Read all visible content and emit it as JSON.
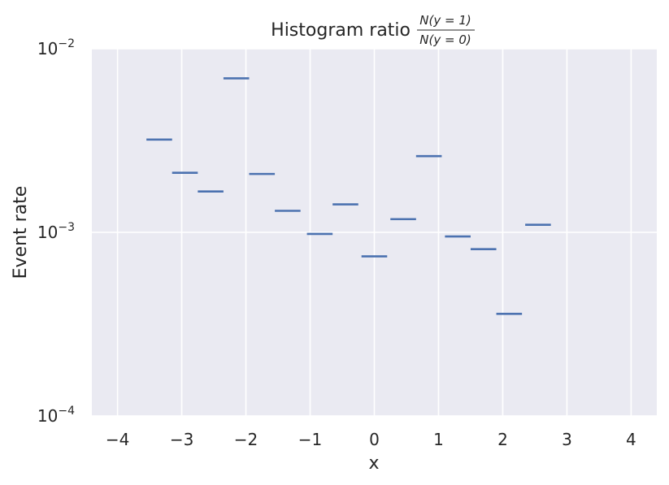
{
  "chart_data": {
    "type": "scatter",
    "title": "Histogram ratio",
    "title_fraction": {
      "numerator": "N(y = 1)",
      "denominator": "N(y = 0)"
    },
    "xlabel": "x",
    "ylabel": "Event rate",
    "xlim": [
      -4.4,
      4.4
    ],
    "ylim": [
      0.0001,
      0.01
    ],
    "yscale": "log",
    "grid": true,
    "x_ticks": [
      -4,
      -3,
      -2,
      -1,
      0,
      1,
      2,
      3,
      4
    ],
    "x_tick_labels": [
      "−4",
      "−3",
      "−2",
      "−1",
      "0",
      "1",
      "2",
      "3",
      "4"
    ],
    "y_ticks": [
      0.0001,
      0.001,
      0.01
    ],
    "y_tick_labels": [
      {
        "base": "10",
        "exp": "−4"
      },
      {
        "base": "10",
        "exp": "−3"
      },
      {
        "base": "10",
        "exp": "−2"
      }
    ],
    "colors": {
      "series": "#4c72b0",
      "background": "#eaeaf2",
      "grid": "#ffffff"
    },
    "bins": [
      {
        "x_start": -3.55,
        "x_end": -3.15,
        "y": 0.0032
      },
      {
        "x_start": -3.15,
        "x_end": -2.75,
        "y": 0.00211
      },
      {
        "x_start": -2.75,
        "x_end": -2.35,
        "y": 0.00167
      },
      {
        "x_start": -2.35,
        "x_end": -1.95,
        "y": 0.0069
      },
      {
        "x_start": -1.95,
        "x_end": -1.55,
        "y": 0.00208
      },
      {
        "x_start": -1.55,
        "x_end": -1.15,
        "y": 0.00131
      },
      {
        "x_start": -1.05,
        "x_end": -0.65,
        "y": 0.00098
      },
      {
        "x_start": -0.65,
        "x_end": -0.25,
        "y": 0.00142
      },
      {
        "x_start": -0.2,
        "x_end": 0.2,
        "y": 0.00074
      },
      {
        "x_start": 0.25,
        "x_end": 0.65,
        "y": 0.00118
      },
      {
        "x_start": 0.65,
        "x_end": 1.05,
        "y": 0.0026
      },
      {
        "x_start": 1.1,
        "x_end": 1.5,
        "y": 0.00095
      },
      {
        "x_start": 1.5,
        "x_end": 1.9,
        "y": 0.00081
      },
      {
        "x_start": 1.9,
        "x_end": 2.3,
        "y": 0.00036
      },
      {
        "x_start": 2.35,
        "x_end": 2.75,
        "y": 0.0011
      }
    ]
  }
}
